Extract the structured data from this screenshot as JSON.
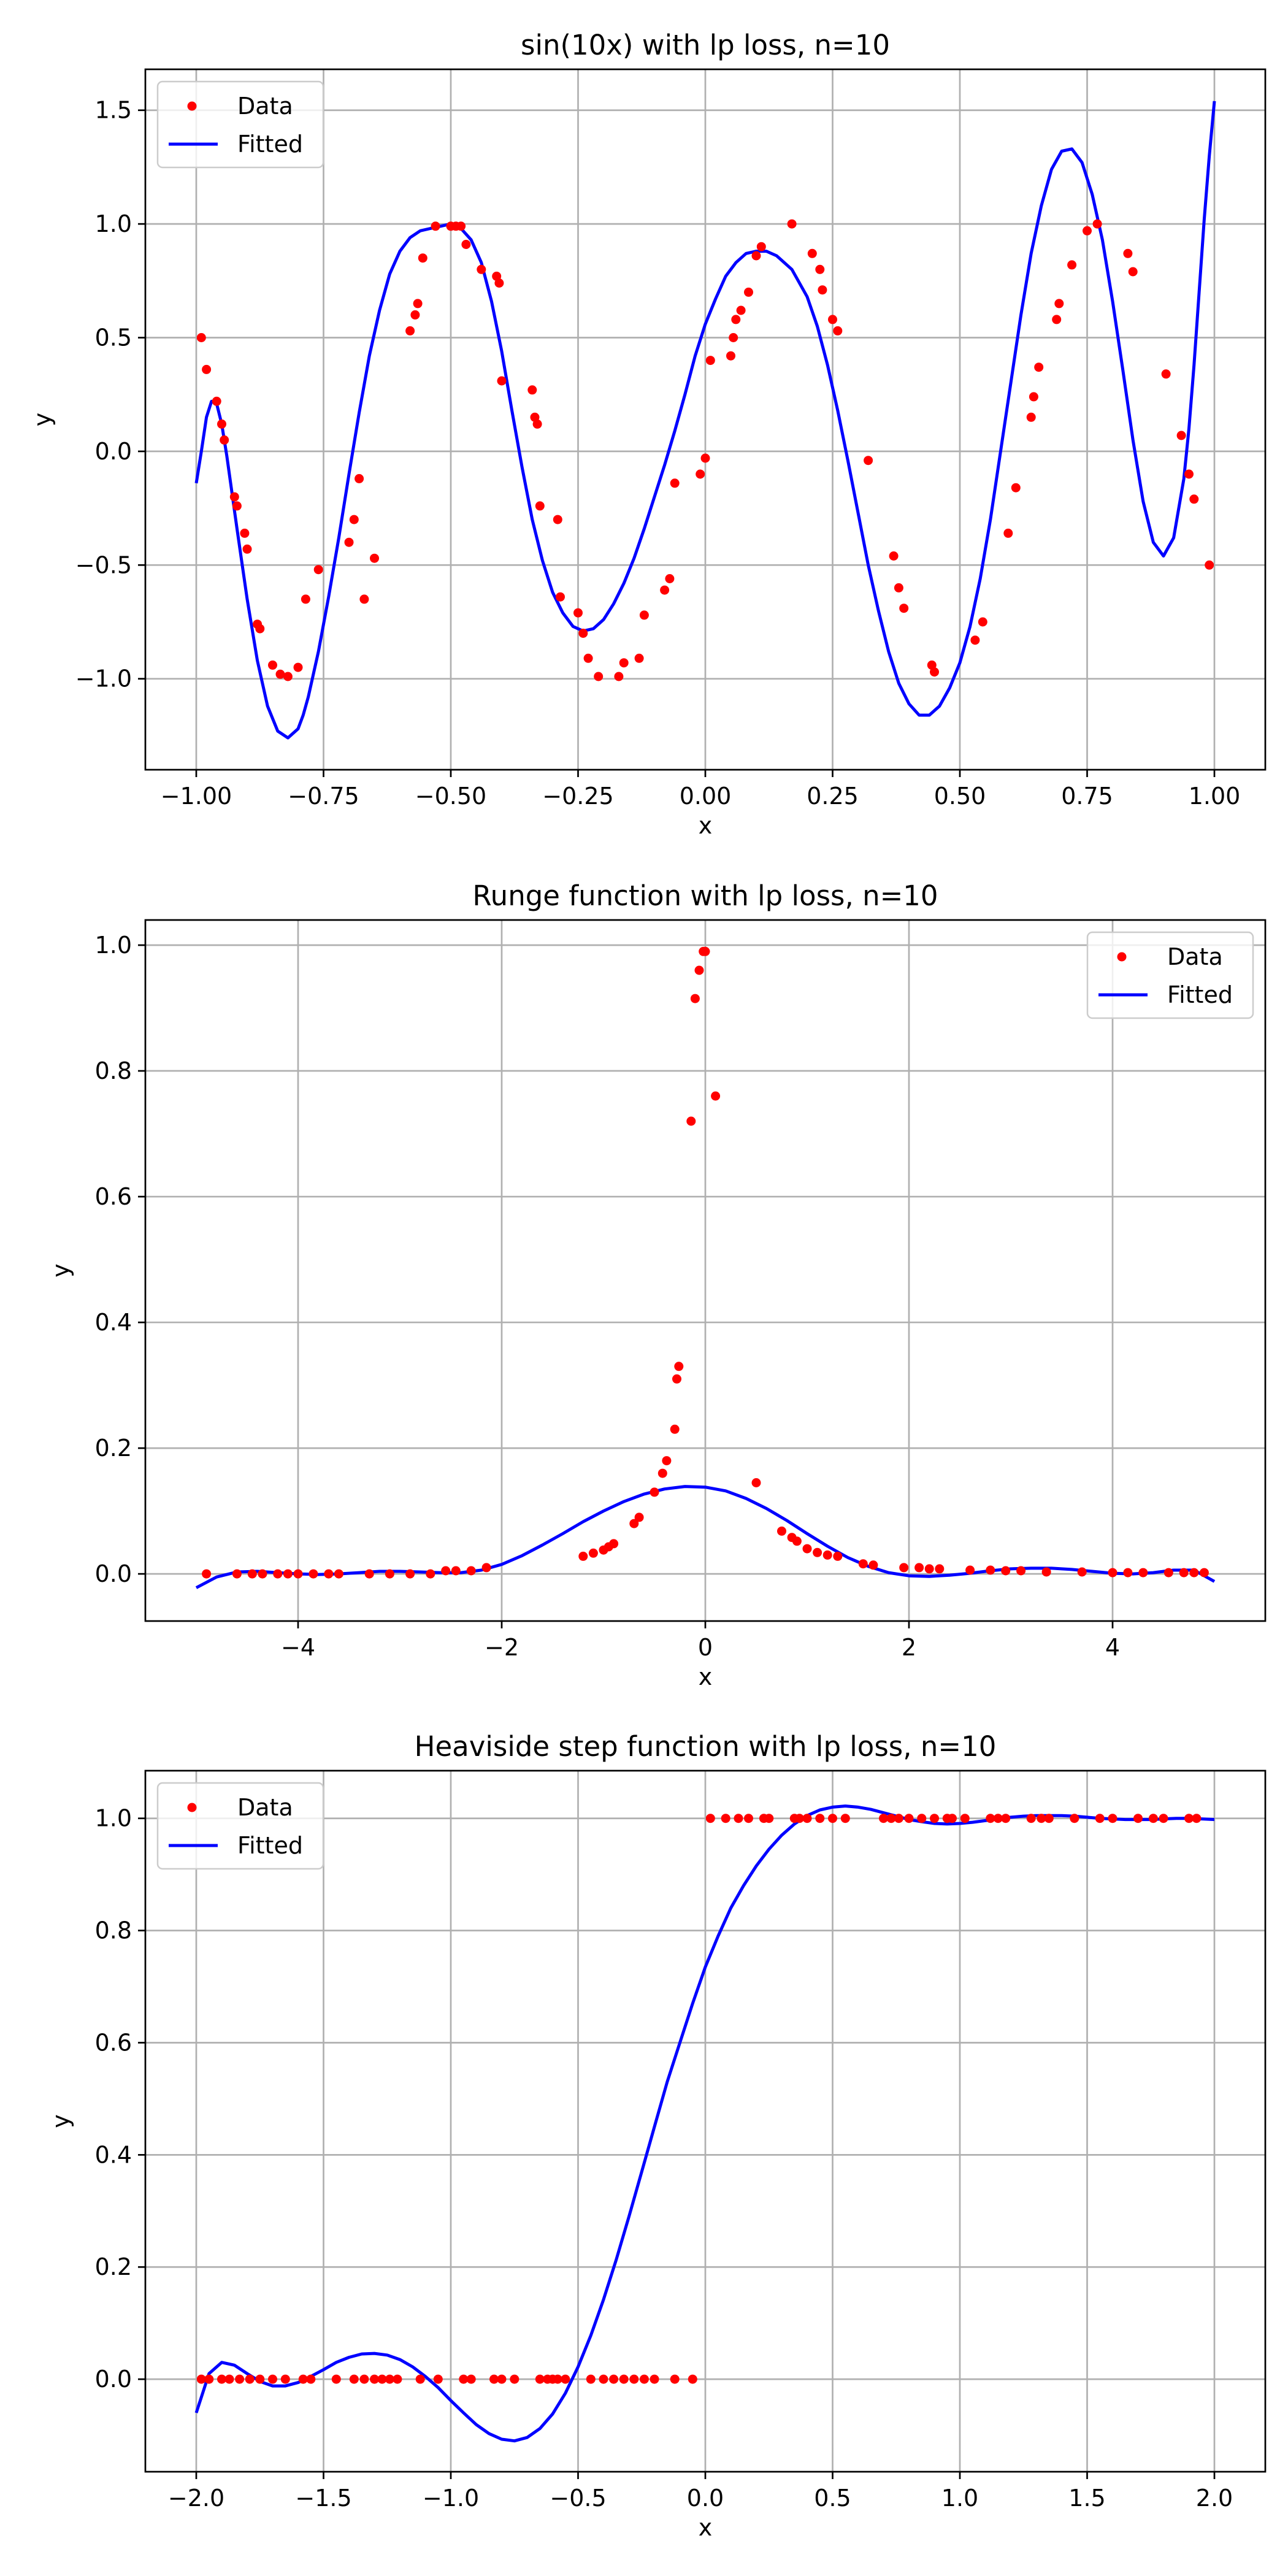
{
  "colors": {
    "data": "#ff0000",
    "fitted": "#0000ff",
    "grid": "#b0b0b0"
  },
  "chart_data": [
    {
      "type": "scatter+line",
      "title": "sin(10x) with lp loss, n=10",
      "xlabel": "x",
      "ylabel": "y",
      "xlim": [
        -1.1,
        1.1
      ],
      "ylim": [
        -1.4,
        1.68
      ],
      "xticks": [
        -1.0,
        -0.75,
        -0.5,
        -0.25,
        0.0,
        0.25,
        0.5,
        0.75,
        1.0
      ],
      "xtick_labels": [
        "−1.00",
        "−0.75",
        "−0.50",
        "−0.25",
        "0.00",
        "0.25",
        "0.50",
        "0.75",
        "1.00"
      ],
      "yticks": [
        -1.0,
        -0.5,
        0.0,
        0.5,
        1.0,
        1.5
      ],
      "ytick_labels": [
        "−1.0",
        "−0.5",
        "0.0",
        "0.5",
        "1.0",
        "1.5"
      ],
      "grid": true,
      "legend": {
        "position": "upper-left",
        "data_label": "Data",
        "fitted_label": "Fitted"
      },
      "data_points": {
        "x": [
          -0.99,
          -0.98,
          -0.96,
          -0.95,
          -0.945,
          -0.925,
          -0.92,
          -0.905,
          -0.9,
          -0.88,
          -0.875,
          -0.85,
          -0.835,
          -0.82,
          -0.8,
          -0.785,
          -0.76,
          -0.7,
          -0.69,
          -0.68,
          -0.67,
          -0.65,
          -0.58,
          -0.57,
          -0.565,
          -0.555,
          -0.53,
          -0.5,
          -0.49,
          -0.48,
          -0.47,
          -0.44,
          -0.41,
          -0.405,
          -0.4,
          -0.34,
          -0.335,
          -0.33,
          -0.325,
          -0.29,
          -0.285,
          -0.25,
          -0.24,
          -0.23,
          -0.21,
          -0.17,
          -0.16,
          -0.13,
          -0.12,
          -0.08,
          -0.07,
          -0.06,
          -0.01,
          0.0,
          0.01,
          0.05,
          0.055,
          0.06,
          0.07,
          0.085,
          0.1,
          0.11,
          0.17,
          0.21,
          0.225,
          0.23,
          0.25,
          0.26,
          0.32,
          0.37,
          0.38,
          0.39,
          0.445,
          0.45,
          0.53,
          0.545,
          0.595,
          0.61,
          0.64,
          0.645,
          0.655,
          0.69,
          0.695,
          0.72,
          0.75,
          0.77,
          0.83,
          0.84,
          0.905,
          0.935,
          0.95,
          0.96,
          0.99
        ],
        "y": [
          0.5,
          0.36,
          0.22,
          0.12,
          0.05,
          -0.2,
          -0.24,
          -0.36,
          -0.43,
          -0.76,
          -0.78,
          -0.94,
          -0.98,
          -0.99,
          -0.95,
          -0.65,
          -0.52,
          -0.4,
          -0.3,
          -0.12,
          -0.65,
          -0.47,
          0.53,
          0.6,
          0.65,
          0.85,
          0.99,
          0.99,
          0.99,
          0.99,
          0.91,
          0.8,
          0.77,
          0.74,
          0.31,
          0.27,
          0.15,
          0.12,
          -0.24,
          -0.3,
          -0.64,
          -0.71,
          -0.8,
          -0.91,
          -0.99,
          -0.99,
          -0.93,
          -0.91,
          -0.72,
          -0.61,
          -0.56,
          -0.14,
          -0.1,
          -0.03,
          0.4,
          0.42,
          0.5,
          0.58,
          0.62,
          0.7,
          0.86,
          0.9,
          1.0,
          0.87,
          0.8,
          0.71,
          0.58,
          0.53,
          -0.04,
          -0.46,
          -0.6,
          -0.69,
          -0.94,
          -0.97,
          -0.83,
          -0.75,
          -0.36,
          -0.16,
          0.15,
          0.24,
          0.37,
          0.58,
          0.65,
          0.82,
          0.97,
          1.0,
          0.87,
          0.79,
          0.34,
          0.07,
          -0.1,
          -0.21,
          -0.5
        ]
      },
      "fitted_curve": {
        "x": [
          -1.0,
          -0.99,
          -0.98,
          -0.97,
          -0.96,
          -0.95,
          -0.94,
          -0.92,
          -0.9,
          -0.88,
          -0.86,
          -0.84,
          -0.82,
          -0.8,
          -0.79,
          -0.78,
          -0.76,
          -0.74,
          -0.72,
          -0.7,
          -0.68,
          -0.66,
          -0.64,
          -0.62,
          -0.6,
          -0.58,
          -0.56,
          -0.54,
          -0.52,
          -0.5,
          -0.48,
          -0.46,
          -0.44,
          -0.42,
          -0.4,
          -0.38,
          -0.36,
          -0.34,
          -0.32,
          -0.3,
          -0.28,
          -0.26,
          -0.24,
          -0.22,
          -0.2,
          -0.18,
          -0.16,
          -0.14,
          -0.12,
          -0.1,
          -0.08,
          -0.06,
          -0.04,
          -0.02,
          0.0,
          0.02,
          0.04,
          0.06,
          0.08,
          0.1,
          0.12,
          0.14,
          0.17,
          0.2,
          0.22,
          0.24,
          0.26,
          0.28,
          0.3,
          0.32,
          0.34,
          0.36,
          0.38,
          0.4,
          0.42,
          0.44,
          0.46,
          0.48,
          0.5,
          0.52,
          0.54,
          0.56,
          0.58,
          0.6,
          0.62,
          0.64,
          0.66,
          0.68,
          0.7,
          0.72,
          0.74,
          0.76,
          0.78,
          0.8,
          0.82,
          0.84,
          0.86,
          0.88,
          0.9,
          0.92,
          0.94,
          0.95,
          0.96,
          0.97,
          0.98,
          0.99,
          1.0
        ],
        "y": [
          -0.14,
          0.0,
          0.15,
          0.22,
          0.21,
          0.12,
          -0.02,
          -0.34,
          -0.65,
          -0.92,
          -1.12,
          -1.23,
          -1.26,
          -1.22,
          -1.16,
          -1.08,
          -0.88,
          -0.64,
          -0.38,
          -0.1,
          0.17,
          0.42,
          0.62,
          0.78,
          0.88,
          0.94,
          0.97,
          0.98,
          0.99,
          1.0,
          0.98,
          0.93,
          0.83,
          0.66,
          0.44,
          0.18,
          -0.07,
          -0.3,
          -0.48,
          -0.62,
          -0.71,
          -0.77,
          -0.79,
          -0.78,
          -0.74,
          -0.67,
          -0.58,
          -0.47,
          -0.34,
          -0.2,
          -0.06,
          0.09,
          0.25,
          0.42,
          0.56,
          0.67,
          0.77,
          0.83,
          0.87,
          0.88,
          0.88,
          0.86,
          0.8,
          0.68,
          0.55,
          0.38,
          0.18,
          -0.04,
          -0.27,
          -0.5,
          -0.7,
          -0.88,
          -1.02,
          -1.11,
          -1.16,
          -1.16,
          -1.12,
          -1.04,
          -0.93,
          -0.77,
          -0.56,
          -0.3,
          0.0,
          0.3,
          0.6,
          0.87,
          1.08,
          1.24,
          1.32,
          1.33,
          1.27,
          1.13,
          0.93,
          0.66,
          0.36,
          0.05,
          -0.22,
          -0.4,
          -0.46,
          -0.38,
          -0.12,
          0.1,
          0.38,
          0.7,
          1.02,
          1.3,
          1.54
        ]
      }
    },
    {
      "type": "scatter+line",
      "title": "Runge function with lp loss, n=10",
      "xlabel": "x",
      "ylabel": "y",
      "xlim": [
        -5.5,
        5.5
      ],
      "ylim": [
        -0.075,
        1.04
      ],
      "xticks": [
        -4,
        -2,
        0,
        2,
        4
      ],
      "xtick_labels": [
        "−4",
        "−2",
        "0",
        "2",
        "4"
      ],
      "yticks": [
        0.0,
        0.2,
        0.4,
        0.6,
        0.8,
        1.0
      ],
      "ytick_labels": [
        "0.0",
        "0.2",
        "0.4",
        "0.6",
        "0.8",
        "1.0"
      ],
      "grid": true,
      "legend": {
        "position": "upper-right",
        "data_label": "Data",
        "fitted_label": "Fitted"
      },
      "data_points": {
        "x": [
          -4.9,
          -4.6,
          -4.45,
          -4.35,
          -4.2,
          -4.1,
          -4.0,
          -3.85,
          -3.7,
          -3.6,
          -3.3,
          -3.1,
          -2.9,
          -2.7,
          -2.55,
          -2.45,
          -2.3,
          -2.15,
          -1.2,
          -1.1,
          -1.0,
          -0.95,
          -0.9,
          -0.7,
          -0.65,
          -0.5,
          -0.42,
          -0.38,
          -0.3,
          -0.28,
          -0.26,
          -0.14,
          -0.1,
          -0.06,
          -0.02,
          0.0,
          0.1,
          0.5,
          0.75,
          0.85,
          0.9,
          1.0,
          1.1,
          1.2,
          1.3,
          1.55,
          1.65,
          1.95,
          2.1,
          2.2,
          2.3,
          2.6,
          2.8,
          2.95,
          3.1,
          3.35,
          3.7,
          4.0,
          4.15,
          4.3,
          4.55,
          4.7,
          4.8,
          4.9
        ],
        "y": [
          0.0,
          0.0,
          0.0,
          0.0,
          0.0,
          0.0,
          0.0,
          0.0,
          0.0,
          0.0,
          0.0,
          0.0,
          0.0,
          0.0,
          0.005,
          0.005,
          0.005,
          0.01,
          0.028,
          0.033,
          0.038,
          0.043,
          0.048,
          0.08,
          0.09,
          0.13,
          0.16,
          0.18,
          0.23,
          0.31,
          0.33,
          0.72,
          0.915,
          0.96,
          0.99,
          0.99,
          0.76,
          0.145,
          0.068,
          0.058,
          0.052,
          0.04,
          0.034,
          0.03,
          0.028,
          0.016,
          0.014,
          0.01,
          0.01,
          0.008,
          0.008,
          0.006,
          0.006,
          0.005,
          0.005,
          0.003,
          0.003,
          0.002,
          0.002,
          0.002,
          0.002,
          0.002,
          0.002,
          0.002
        ]
      },
      "fitted_curve": {
        "x": [
          -5.0,
          -4.8,
          -4.6,
          -4.4,
          -4.2,
          -4.0,
          -3.8,
          -3.6,
          -3.4,
          -3.2,
          -3.0,
          -2.8,
          -2.6,
          -2.4,
          -2.2,
          -2.0,
          -1.8,
          -1.6,
          -1.4,
          -1.2,
          -1.0,
          -0.8,
          -0.6,
          -0.4,
          -0.2,
          0.0,
          0.2,
          0.4,
          0.6,
          0.8,
          1.0,
          1.2,
          1.4,
          1.6,
          1.8,
          2.0,
          2.2,
          2.4,
          2.6,
          2.8,
          3.0,
          3.2,
          3.4,
          3.6,
          3.8,
          4.0,
          4.2,
          4.4,
          4.6,
          4.8,
          5.0
        ],
        "y": [
          -0.022,
          -0.005,
          0.003,
          0.004,
          0.002,
          0.0,
          -0.001,
          0.0,
          0.002,
          0.004,
          0.004,
          0.003,
          0.002,
          0.002,
          0.006,
          0.015,
          0.029,
          0.046,
          0.064,
          0.083,
          0.1,
          0.115,
          0.127,
          0.135,
          0.139,
          0.138,
          0.132,
          0.12,
          0.104,
          0.085,
          0.064,
          0.044,
          0.026,
          0.012,
          0.002,
          -0.003,
          -0.004,
          -0.002,
          0.001,
          0.005,
          0.008,
          0.009,
          0.009,
          0.007,
          0.004,
          0.001,
          0.0,
          0.002,
          0.006,
          0.006,
          -0.012
        ]
      }
    },
    {
      "type": "scatter+line",
      "title": "Heaviside step function with lp loss, n=10",
      "xlabel": "x",
      "ylabel": "y",
      "xlim": [
        -2.2,
        2.2
      ],
      "ylim": [
        -0.165,
        1.085
      ],
      "xticks": [
        -2.0,
        -1.5,
        -1.0,
        -0.5,
        0.0,
        0.5,
        1.0,
        1.5,
        2.0
      ],
      "xtick_labels": [
        "−2.0",
        "−1.5",
        "−1.0",
        "−0.5",
        "0.0",
        "0.5",
        "1.0",
        "1.5",
        "2.0"
      ],
      "yticks": [
        0.0,
        0.2,
        0.4,
        0.6,
        0.8,
        1.0
      ],
      "ytick_labels": [
        "0.0",
        "0.2",
        "0.4",
        "0.6",
        "0.8",
        "1.0"
      ],
      "grid": true,
      "legend": {
        "position": "upper-left",
        "data_label": "Data",
        "fitted_label": "Fitted"
      },
      "data_points": {
        "x": [
          -1.98,
          -1.95,
          -1.9,
          -1.87,
          -1.83,
          -1.79,
          -1.75,
          -1.7,
          -1.65,
          -1.58,
          -1.55,
          -1.45,
          -1.38,
          -1.34,
          -1.3,
          -1.27,
          -1.24,
          -1.21,
          -1.12,
          -1.05,
          -0.95,
          -0.92,
          -0.83,
          -0.8,
          -0.75,
          -0.65,
          -0.62,
          -0.6,
          -0.58,
          -0.55,
          -0.45,
          -0.4,
          -0.36,
          -0.32,
          -0.28,
          -0.24,
          -0.2,
          -0.12,
          -0.05,
          0.02,
          0.08,
          0.13,
          0.17,
          0.23,
          0.25,
          0.35,
          0.37,
          0.4,
          0.45,
          0.5,
          0.55,
          0.7,
          0.73,
          0.76,
          0.8,
          0.85,
          0.9,
          0.95,
          0.97,
          1.02,
          1.12,
          1.15,
          1.18,
          1.28,
          1.32,
          1.35,
          1.45,
          1.55,
          1.6,
          1.7,
          1.76,
          1.8,
          1.9,
          1.93
        ],
        "y": [
          0.0,
          0.0,
          0.0,
          0.0,
          0.0,
          0.0,
          0.0,
          0.0,
          0.0,
          0.0,
          0.0,
          0.0,
          0.0,
          0.0,
          0.0,
          0.0,
          0.0,
          0.0,
          0.0,
          0.0,
          0.0,
          0.0,
          0.0,
          0.0,
          0.0,
          0.0,
          0.0,
          0.0,
          0.0,
          0.0,
          0.0,
          0.0,
          0.0,
          0.0,
          0.0,
          0.0,
          0.0,
          0.0,
          0.0,
          1.0,
          1.0,
          1.0,
          1.0,
          1.0,
          1.0,
          1.0,
          1.0,
          1.0,
          1.0,
          1.0,
          1.0,
          1.0,
          1.0,
          1.0,
          1.0,
          1.0,
          1.0,
          1.0,
          1.0,
          1.0,
          1.0,
          1.0,
          1.0,
          1.0,
          1.0,
          1.0,
          1.0,
          1.0,
          1.0,
          1.0,
          1.0,
          1.0,
          1.0,
          1.0
        ]
      },
      "fitted_curve": {
        "x": [
          -2.0,
          -1.95,
          -1.9,
          -1.85,
          -1.8,
          -1.75,
          -1.7,
          -1.65,
          -1.6,
          -1.55,
          -1.5,
          -1.45,
          -1.4,
          -1.35,
          -1.3,
          -1.25,
          -1.2,
          -1.15,
          -1.1,
          -1.05,
          -1.0,
          -0.95,
          -0.9,
          -0.85,
          -0.8,
          -0.75,
          -0.7,
          -0.65,
          -0.6,
          -0.55,
          -0.5,
          -0.45,
          -0.4,
          -0.35,
          -0.3,
          -0.25,
          -0.2,
          -0.15,
          -0.1,
          -0.05,
          0.0,
          0.05,
          0.1,
          0.15,
          0.2,
          0.25,
          0.3,
          0.35,
          0.4,
          0.45,
          0.5,
          0.55,
          0.6,
          0.65,
          0.7,
          0.75,
          0.8,
          0.85,
          0.9,
          0.95,
          1.0,
          1.05,
          1.1,
          1.15,
          1.2,
          1.25,
          1.3,
          1.35,
          1.4,
          1.45,
          1.5,
          1.55,
          1.6,
          1.65,
          1.7,
          1.75,
          1.8,
          1.85,
          1.9,
          1.95,
          2.0
        ],
        "y": [
          -0.06,
          0.01,
          0.03,
          0.025,
          0.01,
          -0.004,
          -0.012,
          -0.012,
          -0.006,
          0.005,
          0.017,
          0.03,
          0.039,
          0.045,
          0.046,
          0.043,
          0.035,
          0.022,
          0.005,
          -0.015,
          -0.038,
          -0.06,
          -0.081,
          -0.097,
          -0.107,
          -0.11,
          -0.104,
          -0.088,
          -0.062,
          -0.025,
          0.022,
          0.078,
          0.142,
          0.213,
          0.29,
          0.37,
          0.45,
          0.53,
          0.6,
          0.67,
          0.735,
          0.79,
          0.84,
          0.88,
          0.915,
          0.945,
          0.97,
          0.99,
          1.005,
          1.015,
          1.02,
          1.022,
          1.02,
          1.016,
          1.01,
          1.004,
          0.998,
          0.994,
          0.991,
          0.99,
          0.991,
          0.993,
          0.996,
          0.999,
          1.002,
          1.004,
          1.005,
          1.005,
          1.005,
          1.004,
          1.002,
          1.0,
          0.999,
          0.998,
          0.998,
          0.998,
          0.999,
          1.0,
          1.0,
          0.999,
          0.998
        ]
      }
    }
  ]
}
